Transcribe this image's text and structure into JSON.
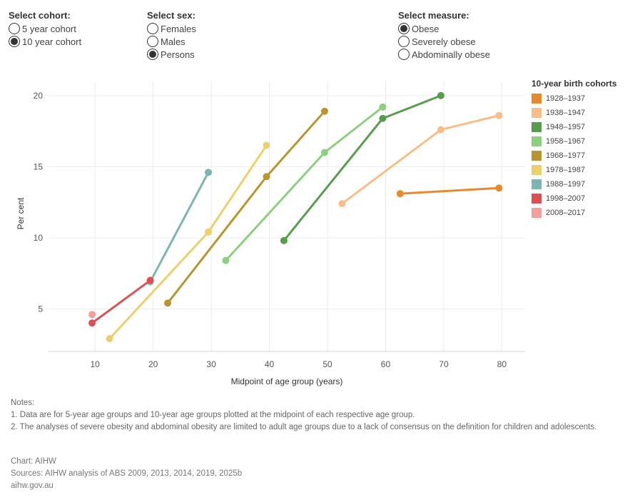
{
  "filters": {
    "cohort": {
      "title": "Select cohort:",
      "options": [
        "5 year cohort",
        "10 year cohort"
      ],
      "selected": 1
    },
    "sex": {
      "title": "Select sex:",
      "options": [
        "Females",
        "Males",
        "Persons"
      ],
      "selected": 2
    },
    "measure": {
      "title": "Select measure:",
      "options": [
        "Obese",
        "Severely obese",
        "Abdominally obese"
      ],
      "selected": 0
    }
  },
  "chart_data": {
    "type": "line",
    "xlabel": "Midpoint of age group (years)",
    "ylabel": "Per cent",
    "xlim": [
      2,
      84
    ],
    "ylim": [
      2,
      21
    ],
    "xticks": [
      10,
      20,
      30,
      40,
      50,
      60,
      70,
      80
    ],
    "yticks": [
      5,
      10,
      15,
      20
    ],
    "grid": true,
    "legend_title": "10-year birth cohorts",
    "legend_position": "right",
    "series": [
      {
        "name": "1928–1937",
        "color": "#E8892E",
        "points": [
          [
            62.5,
            13.1
          ],
          [
            79.5,
            13.5
          ]
        ]
      },
      {
        "name": "1938–1947",
        "color": "#F9BE87",
        "points": [
          [
            52.5,
            12.4
          ],
          [
            69.5,
            17.6
          ],
          [
            79.5,
            18.6
          ]
        ]
      },
      {
        "name": "1948–1957",
        "color": "#579D4D",
        "points": [
          [
            42.5,
            9.8
          ],
          [
            59.5,
            18.4
          ],
          [
            69.5,
            20.0
          ]
        ]
      },
      {
        "name": "1958–1967",
        "color": "#8CCF7E",
        "points": [
          [
            32.5,
            8.4
          ],
          [
            49.5,
            16.0
          ],
          [
            59.5,
            19.2
          ]
        ]
      },
      {
        "name": "1968–1977",
        "color": "#B79631",
        "points": [
          [
            22.5,
            5.4
          ],
          [
            39.5,
            14.3
          ],
          [
            49.5,
            18.9
          ]
        ]
      },
      {
        "name": "1978–1987",
        "color": "#EDCF6C",
        "points": [
          [
            12.5,
            2.9
          ],
          [
            29.5,
            10.4
          ],
          [
            39.5,
            16.5
          ]
        ]
      },
      {
        "name": "1988–1997",
        "color": "#7DB5B0",
        "points": [
          [
            19.5,
            6.9
          ],
          [
            29.5,
            14.6
          ]
        ]
      },
      {
        "name": "1998–2007",
        "color": "#DB5054",
        "points": [
          [
            9.5,
            4.0
          ],
          [
            19.5,
            7.0
          ]
        ]
      },
      {
        "name": "2008–2017",
        "color": "#F59E9B",
        "points": [
          [
            9.5,
            4.6
          ]
        ]
      }
    ]
  },
  "notes": {
    "heading": "Notes:",
    "items": [
      "1. Data are for 5-year age groups and 10-year age groups plotted at the midpoint of each respective age group.",
      "2. The analyses of severe obesity and abdominal obesity are limited to adult age groups due to a lack of consensus on the definition for children and adolescents."
    ]
  },
  "footer": {
    "chart_credit": "Chart: AIHW",
    "sources": "Sources: AIHW analysis of ABS 2009, 2013, 2014, 2019, 2025b",
    "website": "aihw.gov.au"
  }
}
